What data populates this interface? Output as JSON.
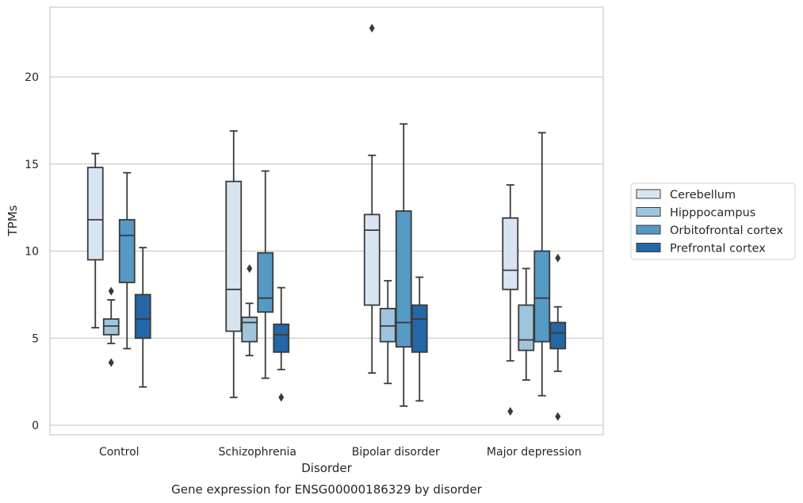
{
  "chart_data": {
    "type": "box",
    "title": "Gene expression for ENSG00000186329 by disorder",
    "xlabel": "Disorder",
    "ylabel": "TPMs",
    "ylim": [
      -0.5,
      23.8
    ],
    "yticks": [
      0,
      5,
      10,
      15,
      20
    ],
    "grid": "horizontal",
    "legend_position": "right",
    "categories": [
      "Control",
      "Schizophrenia",
      "Bipolar disorder",
      "Major depression"
    ],
    "series": [
      {
        "name": "Cerebellum",
        "color": "#d8e5f1",
        "boxes": [
          {
            "whislo": 5.6,
            "q1": 9.5,
            "med": 11.8,
            "q3": 14.8,
            "whishi": 15.6,
            "fliers": []
          },
          {
            "whislo": 1.6,
            "q1": 5.4,
            "med": 7.8,
            "q3": 14.0,
            "whishi": 16.9,
            "fliers": []
          },
          {
            "whislo": 3.0,
            "q1": 6.9,
            "med": 11.2,
            "q3": 12.1,
            "whishi": 15.5,
            "fliers": [
              22.8
            ]
          },
          {
            "whislo": 3.7,
            "q1": 7.8,
            "med": 8.9,
            "q3": 11.9,
            "whishi": 13.8,
            "fliers": [
              0.8
            ]
          }
        ]
      },
      {
        "name": "Hipppocampus",
        "color": "#9ec5dd",
        "boxes": [
          {
            "whislo": 4.7,
            "q1": 5.2,
            "med": 5.7,
            "q3": 6.1,
            "whishi": 7.2,
            "fliers": [
              7.7,
              3.6
            ]
          },
          {
            "whislo": 4.0,
            "q1": 4.8,
            "med": 5.9,
            "q3": 6.2,
            "whishi": 7.0,
            "fliers": [
              9.0
            ]
          },
          {
            "whislo": 2.4,
            "q1": 4.8,
            "med": 5.7,
            "q3": 6.7,
            "whishi": 8.3,
            "fliers": []
          },
          {
            "whislo": 2.6,
            "q1": 4.3,
            "med": 4.9,
            "q3": 6.9,
            "whishi": 9.0,
            "fliers": []
          }
        ]
      },
      {
        "name": "Orbitofrontal cortex",
        "color": "#5599c5",
        "boxes": [
          {
            "whislo": 4.4,
            "q1": 8.2,
            "med": 10.9,
            "q3": 11.8,
            "whishi": 14.5,
            "fliers": []
          },
          {
            "whislo": 2.7,
            "q1": 6.5,
            "med": 7.3,
            "q3": 9.9,
            "whishi": 14.6,
            "fliers": []
          },
          {
            "whislo": 1.1,
            "q1": 4.5,
            "med": 5.9,
            "q3": 12.3,
            "whishi": 17.3,
            "fliers": []
          },
          {
            "whislo": 1.7,
            "q1": 4.8,
            "med": 7.3,
            "q3": 10.0,
            "whishi": 16.8,
            "fliers": []
          }
        ]
      },
      {
        "name": "Prefrontal cortex",
        "color": "#2466a6",
        "boxes": [
          {
            "whislo": 2.2,
            "q1": 5.0,
            "med": 6.1,
            "q3": 7.5,
            "whishi": 10.2,
            "fliers": []
          },
          {
            "whislo": 3.2,
            "q1": 4.2,
            "med": 5.2,
            "q3": 5.8,
            "whishi": 7.9,
            "fliers": [
              1.6
            ]
          },
          {
            "whislo": 1.4,
            "q1": 4.2,
            "med": 6.1,
            "q3": 6.9,
            "whishi": 8.5,
            "fliers": []
          },
          {
            "whislo": 3.1,
            "q1": 4.4,
            "med": 5.3,
            "q3": 5.9,
            "whishi": 6.8,
            "fliers": [
              9.6,
              0.5
            ]
          }
        ]
      }
    ]
  }
}
